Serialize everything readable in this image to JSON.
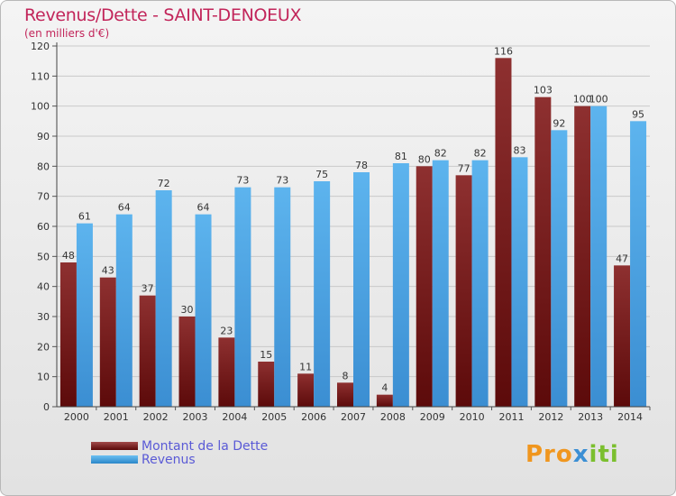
{
  "title": "Revenus/Dette - SAINT-DENOEUX",
  "subtitle": "(en milliers d'€)",
  "logo": {
    "part1": "Pro",
    "part2": "x",
    "part3": "iti"
  },
  "colors": {
    "dette": "#7a1e1e",
    "revenus": "#4aa3e3",
    "title": "#c2255a",
    "legend_text": "#5a5ad6"
  },
  "chart_data": {
    "type": "bar",
    "categories": [
      "2000",
      "2001",
      "2002",
      "2003",
      "2004",
      "2005",
      "2006",
      "2007",
      "2008",
      "2009",
      "2010",
      "2011",
      "2012",
      "2013",
      "2014"
    ],
    "series": [
      {
        "name": "Montant de la Dette",
        "values": [
          48,
          43,
          37,
          30,
          23,
          15,
          11,
          8,
          4,
          80,
          77,
          116,
          103,
          100,
          47
        ]
      },
      {
        "name": "Revenus",
        "values": [
          61,
          64,
          72,
          64,
          73,
          73,
          75,
          78,
          81,
          82,
          82,
          83,
          92,
          100,
          95
        ]
      }
    ],
    "ylim": [
      0,
      120
    ],
    "yticks": [
      0,
      10,
      20,
      30,
      40,
      50,
      60,
      70,
      80,
      90,
      100,
      110,
      120
    ],
    "grid": true,
    "legend": "bottom-left"
  }
}
